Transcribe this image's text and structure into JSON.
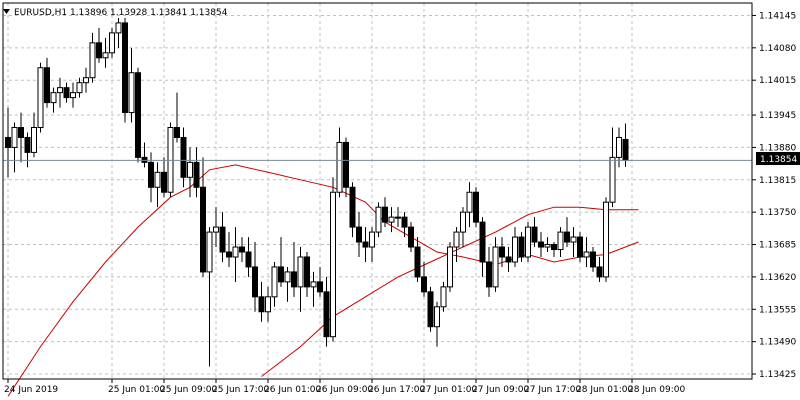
{
  "chart_data": {
    "type": "candlestick",
    "symbol_line": "EURUSD,H1  1.13896 1.13928 1.13841 1.13854",
    "current_price_label": "1.13854",
    "current_price": 1.13854,
    "ylim": [
      1.13415,
      1.1417
    ],
    "y_ticks": [
      "1.14145",
      "1.14080",
      "1.14015",
      "1.13945",
      "1.13880",
      "1.13815",
      "1.13750",
      "1.13685",
      "1.13620",
      "1.13555",
      "1.13490",
      "1.13425"
    ],
    "x_ticks": [
      {
        "bar": 0,
        "label": "24 Jun 2019"
      },
      {
        "bar": 16,
        "label": "25 Jun 01:00"
      },
      {
        "bar": 24,
        "label": "25 Jun 09:00"
      },
      {
        "bar": 32,
        "label": "25 Jun 17:00"
      },
      {
        "bar": 40,
        "label": "26 Jun 01:00"
      },
      {
        "bar": 48,
        "label": "26 Jun 09:00"
      },
      {
        "bar": 56,
        "label": "26 Jun 17:00"
      },
      {
        "bar": 64,
        "label": "27 Jun 01:00"
      },
      {
        "bar": 72,
        "label": "27 Jun 09:00"
      },
      {
        "bar": 80,
        "label": "27 Jun 17:00"
      },
      {
        "bar": 88,
        "label": "28 Jun 01:00"
      },
      {
        "bar": 96,
        "label": "28 Jun 09:00"
      }
    ],
    "colors": {
      "bull": "#ffffff",
      "bear": "#000000",
      "ma": "#cc0000",
      "grid": "#c0c0c0",
      "priceline": "#778899"
    },
    "grid": true,
    "candles": [
      [
        1.139,
        1.1396,
        1.1382,
        1.1388
      ],
      [
        1.1388,
        1.1393,
        1.1383,
        1.1392
      ],
      [
        1.1392,
        1.1395,
        1.1385,
        1.139
      ],
      [
        1.139,
        1.1391,
        1.1384,
        1.1387
      ],
      [
        1.1387,
        1.1395,
        1.1386,
        1.1392
      ],
      [
        1.1392,
        1.1405,
        1.1391,
        1.1404
      ],
      [
        1.1404,
        1.1406,
        1.1396,
        1.1397
      ],
      [
        1.1397,
        1.14,
        1.1395,
        1.1399
      ],
      [
        1.1399,
        1.1402,
        1.1396,
        1.14
      ],
      [
        1.14,
        1.1401,
        1.1397,
        1.1398
      ],
      [
        1.1398,
        1.1401,
        1.1396,
        1.1399
      ],
      [
        1.1399,
        1.1402,
        1.1398,
        1.1401
      ],
      [
        1.1401,
        1.1404,
        1.1399,
        1.1402
      ],
      [
        1.1402,
        1.1411,
        1.1401,
        1.1409
      ],
      [
        1.1409,
        1.1412,
        1.1405,
        1.1406
      ],
      [
        1.1406,
        1.141,
        1.1404,
        1.1407
      ],
      [
        1.1407,
        1.1412,
        1.1406,
        1.1411
      ],
      [
        1.1411,
        1.1414,
        1.1408,
        1.1413
      ],
      [
        1.1413,
        1.1414,
        1.1393,
        1.1395
      ],
      [
        1.1395,
        1.1408,
        1.1393,
        1.1403
      ],
      [
        1.1403,
        1.1404,
        1.1385,
        1.1386
      ],
      [
        1.1386,
        1.1389,
        1.1384,
        1.1385
      ],
      [
        1.1385,
        1.1387,
        1.1377,
        1.138
      ],
      [
        1.138,
        1.1385,
        1.1376,
        1.1383
      ],
      [
        1.1383,
        1.1386,
        1.1378,
        1.1379
      ],
      [
        1.1379,
        1.1393,
        1.1378,
        1.1392
      ],
      [
        1.1392,
        1.1399,
        1.1389,
        1.139
      ],
      [
        1.139,
        1.1392,
        1.138,
        1.1382
      ],
      [
        1.1382,
        1.1388,
        1.1378,
        1.1385
      ],
      [
        1.1385,
        1.1388,
        1.1378,
        1.138
      ],
      [
        1.138,
        1.1386,
        1.1362,
        1.1363
      ],
      [
        1.1363,
        1.1372,
        1.1344,
        1.1371
      ],
      [
        1.1371,
        1.1376,
        1.1368,
        1.1372
      ],
      [
        1.1372,
        1.1375,
        1.1365,
        1.1367
      ],
      [
        1.1367,
        1.1371,
        1.1364,
        1.1366
      ],
      [
        1.1366,
        1.1372,
        1.1361,
        1.1368
      ],
      [
        1.1368,
        1.137,
        1.1365,
        1.1367
      ],
      [
        1.1367,
        1.137,
        1.1362,
        1.1364
      ],
      [
        1.1364,
        1.1369,
        1.1355,
        1.1358
      ],
      [
        1.1358,
        1.1361,
        1.1353,
        1.1355
      ],
      [
        1.1355,
        1.136,
        1.1353,
        1.1358
      ],
      [
        1.1358,
        1.1365,
        1.1356,
        1.1364
      ],
      [
        1.1364,
        1.137,
        1.136,
        1.1361
      ],
      [
        1.1361,
        1.1364,
        1.1357,
        1.1363
      ],
      [
        1.1363,
        1.1369,
        1.1358,
        1.136
      ],
      [
        1.136,
        1.1368,
        1.1355,
        1.1366
      ],
      [
        1.1366,
        1.1367,
        1.1358,
        1.136
      ],
      [
        1.136,
        1.1363,
        1.1356,
        1.1361
      ],
      [
        1.1361,
        1.1364,
        1.1358,
        1.1359
      ],
      [
        1.1359,
        1.1362,
        1.1348,
        1.135
      ],
      [
        1.135,
        1.1382,
        1.1349,
        1.1379
      ],
      [
        1.1379,
        1.1392,
        1.1378,
        1.1389
      ],
      [
        1.1389,
        1.139,
        1.1378,
        1.138
      ],
      [
        1.138,
        1.1381,
        1.137,
        1.1372
      ],
      [
        1.1372,
        1.1375,
        1.1366,
        1.1369
      ],
      [
        1.1369,
        1.1372,
        1.1365,
        1.1368
      ],
      [
        1.1368,
        1.1372,
        1.1365,
        1.1371
      ],
      [
        1.1371,
        1.1377,
        1.137,
        1.1376
      ],
      [
        1.1376,
        1.1378,
        1.1372,
        1.1373
      ],
      [
        1.1373,
        1.1376,
        1.1371,
        1.1374
      ],
      [
        1.1374,
        1.1376,
        1.1372,
        1.1374
      ],
      [
        1.1374,
        1.1375,
        1.137,
        1.1372
      ],
      [
        1.1372,
        1.1373,
        1.1367,
        1.1368
      ],
      [
        1.1368,
        1.137,
        1.1361,
        1.1362
      ],
      [
        1.1362,
        1.1365,
        1.1358,
        1.1359
      ],
      [
        1.1359,
        1.136,
        1.1351,
        1.1352
      ],
      [
        1.1352,
        1.1357,
        1.1348,
        1.1356
      ],
      [
        1.1356,
        1.1361,
        1.1355,
        1.136
      ],
      [
        1.136,
        1.1369,
        1.1359,
        1.1368
      ],
      [
        1.1368,
        1.1372,
        1.1365,
        1.1371
      ],
      [
        1.1371,
        1.1376,
        1.1368,
        1.1375
      ],
      [
        1.1375,
        1.1381,
        1.1372,
        1.1379
      ],
      [
        1.1379,
        1.138,
        1.1372,
        1.1373
      ],
      [
        1.1373,
        1.1374,
        1.1362,
        1.1365
      ],
      [
        1.1365,
        1.1368,
        1.1358,
        1.136
      ],
      [
        1.136,
        1.137,
        1.1359,
        1.1368
      ],
      [
        1.1368,
        1.137,
        1.1364,
        1.1366
      ],
      [
        1.1366,
        1.1368,
        1.1363,
        1.1365
      ],
      [
        1.1365,
        1.1372,
        1.1364,
        1.137
      ],
      [
        1.137,
        1.1371,
        1.1365,
        1.1366
      ],
      [
        1.1366,
        1.1373,
        1.1365,
        1.1372
      ],
      [
        1.1372,
        1.1374,
        1.1368,
        1.1369
      ],
      [
        1.1369,
        1.1371,
        1.1366,
        1.1368
      ],
      [
        1.1368,
        1.137,
        1.1367,
        1.13685
      ],
      [
        1.13685,
        1.1369,
        1.1366,
        1.13675
      ],
      [
        1.13675,
        1.1372,
        1.1366,
        1.1371
      ],
      [
        1.1371,
        1.1374,
        1.1368,
        1.1369
      ],
      [
        1.1369,
        1.1372,
        1.1366,
        1.137
      ],
      [
        1.137,
        1.1371,
        1.1365,
        1.1366
      ],
      [
        1.1366,
        1.137,
        1.1364,
        1.1367
      ],
      [
        1.1367,
        1.1368,
        1.1363,
        1.1364
      ],
      [
        1.1364,
        1.1366,
        1.1361,
        1.1362
      ],
      [
        1.1362,
        1.1378,
        1.1361,
        1.1377
      ],
      [
        1.1377,
        1.1392,
        1.1376,
        1.1386
      ],
      [
        1.1386,
        1.1392,
        1.1384,
        1.139
      ],
      [
        1.13896,
        1.13928,
        1.13841,
        1.13854
      ]
    ],
    "ma_fast": [
      [
        0,
        1.1338
      ],
      [
        5,
        1.1348
      ],
      [
        10,
        1.1357
      ],
      [
        15,
        1.1365
      ],
      [
        20,
        1.1372
      ],
      [
        25,
        1.1378
      ],
      [
        28,
        1.138
      ],
      [
        31,
        1.13835
      ],
      [
        35,
        1.13845
      ],
      [
        40,
        1.1383
      ],
      [
        45,
        1.13815
      ],
      [
        50,
        1.138
      ],
      [
        55,
        1.1377
      ],
      [
        58,
        1.1373
      ],
      [
        62,
        1.137
      ],
      [
        66,
        1.1367
      ],
      [
        70,
        1.1366
      ],
      [
        75,
        1.13645
      ],
      [
        80,
        1.13665
      ],
      [
        84,
        1.1365
      ],
      [
        88,
        1.1366
      ],
      [
        92,
        1.13665
      ],
      [
        97,
        1.1369
      ]
    ],
    "ma_slow": [
      [
        39,
        1.1342
      ],
      [
        45,
        1.1348
      ],
      [
        50,
        1.1354
      ],
      [
        55,
        1.1358
      ],
      [
        60,
        1.1362
      ],
      [
        65,
        1.1365
      ],
      [
        70,
        1.1368
      ],
      [
        75,
        1.1371
      ],
      [
        80,
        1.13745
      ],
      [
        84,
        1.1376
      ],
      [
        88,
        1.1376
      ],
      [
        92,
        1.13755
      ],
      [
        97,
        1.13755
      ]
    ]
  }
}
